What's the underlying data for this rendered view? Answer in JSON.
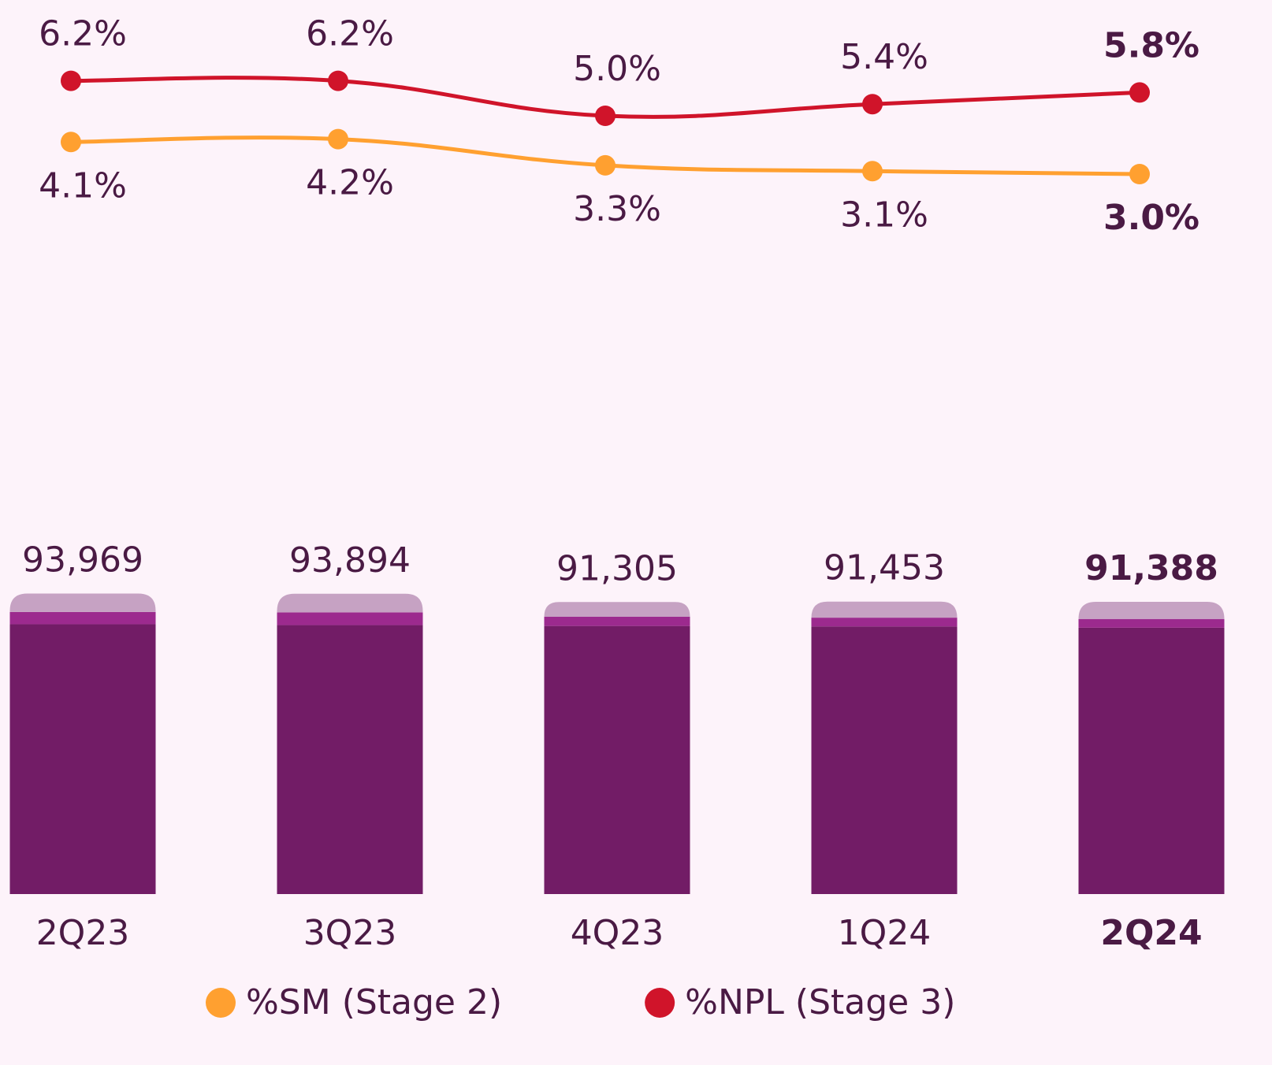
{
  "chart_data": {
    "type": "bar-line",
    "categories": [
      "2Q23",
      "3Q23",
      "4Q23",
      "1Q24",
      "2Q24"
    ],
    "emphasis_index": 4,
    "series": [
      {
        "color": "#721c66",
        "values": [
          84370,
          84100,
          83830,
          83690,
          83280
        ]
      },
      {
        "color": "#9c2a8e",
        "values": [
          3840,
          3980,
          2880,
          2740,
          2740
        ]
      },
      {
        "color": "#c6a2c3",
        "values": [
          5760,
          5810,
          4600,
          5020,
          5370
        ]
      },
      {
        "name": "%SM (Stage 2)",
        "color": "#ffa030",
        "axis": "y2",
        "values": [
          4.1,
          4.2,
          3.3,
          3.1,
          3.0
        ],
        "value_labels": [
          "4.1%",
          "4.2%",
          "3.3%",
          "3.1%",
          "3.0%"
        ]
      },
      {
        "name": "%NPL (Stage 3)",
        "color": "#d0142a",
        "axis": "y2",
        "values": [
          6.2,
          6.2,
          5.0,
          5.4,
          5.8
        ],
        "value_labels": [
          "6.2%",
          "6.2%",
          "5.0%",
          "5.4%",
          "5.8%"
        ]
      }
    ],
    "totals": [
      93969,
      93894,
      91305,
      91453,
      91388
    ],
    "total_labels": [
      "93,969",
      "93,894",
      "91,305",
      "91,453",
      "91,388"
    ],
    "ylim": [
      0,
      100000
    ],
    "y2lim": [
      0,
      8
    ]
  }
}
